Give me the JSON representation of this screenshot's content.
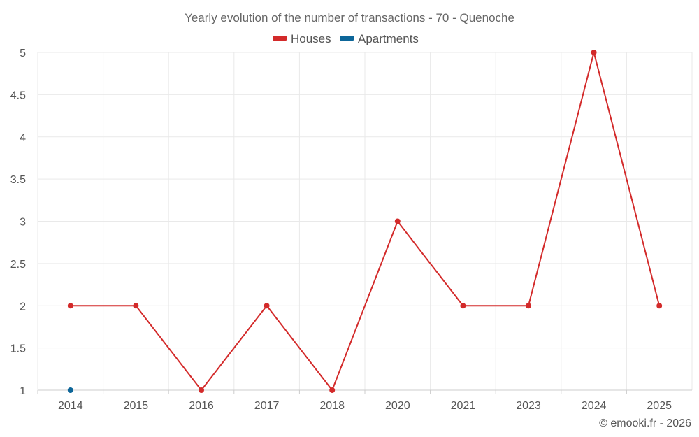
{
  "chart_data": {
    "type": "line",
    "title": "Yearly evolution of the number of transactions - 70 - Quenoche",
    "categories": [
      "2014",
      "2015",
      "2016",
      "2017",
      "2018",
      "2020",
      "2021",
      "2023",
      "2024",
      "2025"
    ],
    "series": [
      {
        "name": "Houses",
        "color": "#d32a2a",
        "values": [
          2,
          2,
          1,
          2,
          1,
          3,
          2,
          2,
          5,
          2
        ]
      },
      {
        "name": "Apartments",
        "color": "#0d6699",
        "values": [
          1,
          null,
          null,
          null,
          null,
          null,
          null,
          null,
          null,
          null
        ]
      }
    ],
    "y_ticks": [
      "1",
      "1.5",
      "2",
      "2.5",
      "3",
      "3.5",
      "4",
      "4.5",
      "5"
    ],
    "ylim": [
      1,
      5
    ],
    "xlabel": "",
    "ylabel": "",
    "legend": "top-center",
    "grid": true
  },
  "credit": "© emooki.fr - 2026"
}
